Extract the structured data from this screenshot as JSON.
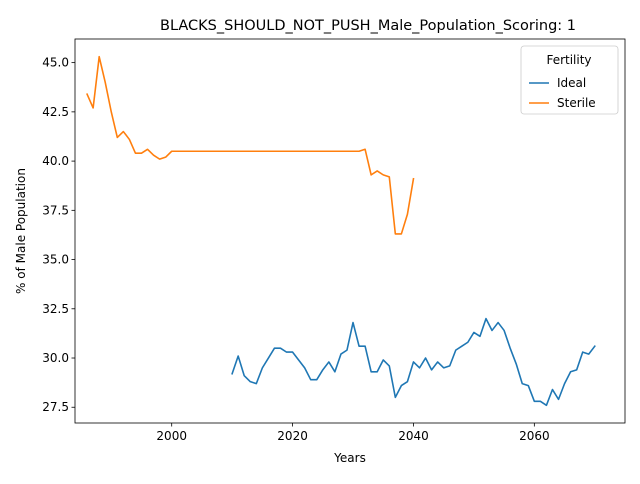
{
  "chart_data": {
    "type": "line",
    "title": "BLACKS_SHOULD_NOT_PUSH_Male_Population_Scoring: 1",
    "xlabel": "Years",
    "ylabel": "% of Male Population",
    "xlim": [
      1984,
      2075
    ],
    "ylim": [
      26.7,
      46.2
    ],
    "xticks": [
      2000,
      2020,
      2040,
      2060
    ],
    "yticks": [
      27.5,
      30.0,
      32.5,
      35.0,
      37.5,
      40.0,
      42.5,
      45.0
    ],
    "xtick_labels": [
      "2000",
      "2020",
      "2040",
      "2060"
    ],
    "ytick_labels": [
      "27.5",
      "30.0",
      "32.5",
      "35.0",
      "37.5",
      "40.0",
      "42.5",
      "45.0"
    ],
    "grid": false,
    "legend": {
      "title": "Fertility",
      "placement": "top-right"
    },
    "series": [
      {
        "name": "Ideal",
        "color": "#1f77b4",
        "points": [
          [
            2010,
            29.2
          ],
          [
            2011,
            30.1
          ],
          [
            2012,
            29.1
          ],
          [
            2013,
            28.8
          ],
          [
            2014,
            28.7
          ],
          [
            2015,
            29.5
          ],
          [
            2016,
            30.0
          ],
          [
            2017,
            30.5
          ],
          [
            2018,
            30.5
          ],
          [
            2019,
            30.3
          ],
          [
            2020,
            30.3
          ],
          [
            2021,
            29.9
          ],
          [
            2022,
            29.5
          ],
          [
            2023,
            28.9
          ],
          [
            2024,
            28.9
          ],
          [
            2025,
            29.4
          ],
          [
            2026,
            29.8
          ],
          [
            2027,
            29.3
          ],
          [
            2028,
            30.2
          ],
          [
            2029,
            30.4
          ],
          [
            2030,
            31.8
          ],
          [
            2031,
            30.6
          ],
          [
            2032,
            30.6
          ],
          [
            2033,
            29.3
          ],
          [
            2034,
            29.3
          ],
          [
            2035,
            29.9
          ],
          [
            2036,
            29.6
          ],
          [
            2037,
            28.0
          ],
          [
            2038,
            28.6
          ],
          [
            2039,
            28.8
          ],
          [
            2040,
            29.8
          ],
          [
            2041,
            29.5
          ],
          [
            2042,
            30.0
          ],
          [
            2043,
            29.4
          ],
          [
            2044,
            29.8
          ],
          [
            2045,
            29.5
          ],
          [
            2046,
            29.6
          ],
          [
            2047,
            30.4
          ],
          [
            2048,
            30.6
          ],
          [
            2049,
            30.8
          ],
          [
            2050,
            31.3
          ],
          [
            2051,
            31.1
          ],
          [
            2052,
            32.0
          ],
          [
            2053,
            31.4
          ],
          [
            2054,
            31.8
          ],
          [
            2055,
            31.4
          ],
          [
            2056,
            30.5
          ],
          [
            2057,
            29.7
          ],
          [
            2058,
            28.7
          ],
          [
            2059,
            28.6
          ],
          [
            2060,
            27.8
          ],
          [
            2061,
            27.8
          ],
          [
            2062,
            27.6
          ],
          [
            2063,
            28.4
          ],
          [
            2064,
            27.9
          ],
          [
            2065,
            28.7
          ],
          [
            2066,
            29.3
          ],
          [
            2067,
            29.4
          ],
          [
            2068,
            30.3
          ],
          [
            2069,
            30.2
          ],
          [
            2070,
            30.6
          ]
        ]
      },
      {
        "name": "Sterile",
        "color": "#ff7f0e",
        "points": [
          [
            1986,
            43.4
          ],
          [
            1987,
            42.7
          ],
          [
            1988,
            45.3
          ],
          [
            1989,
            44.0
          ],
          [
            1990,
            42.5
          ],
          [
            1991,
            41.2
          ],
          [
            1992,
            41.5
          ],
          [
            1993,
            41.1
          ],
          [
            1994,
            40.4
          ],
          [
            1995,
            40.4
          ],
          [
            1996,
            40.6
          ],
          [
            1997,
            40.3
          ],
          [
            1998,
            40.1
          ],
          [
            1999,
            40.2
          ],
          [
            2000,
            40.5
          ],
          [
            2005,
            40.5
          ],
          [
            2010,
            40.5
          ],
          [
            2015,
            40.5
          ],
          [
            2020,
            40.5
          ],
          [
            2025,
            40.5
          ],
          [
            2030,
            40.5
          ],
          [
            2031,
            40.5
          ],
          [
            2032,
            40.6
          ],
          [
            2033,
            39.3
          ],
          [
            2034,
            39.5
          ],
          [
            2035,
            39.3
          ],
          [
            2036,
            39.2
          ],
          [
            2037,
            36.3
          ],
          [
            2038,
            36.3
          ],
          [
            2039,
            37.3
          ],
          [
            2040,
            39.1
          ]
        ]
      }
    ]
  }
}
